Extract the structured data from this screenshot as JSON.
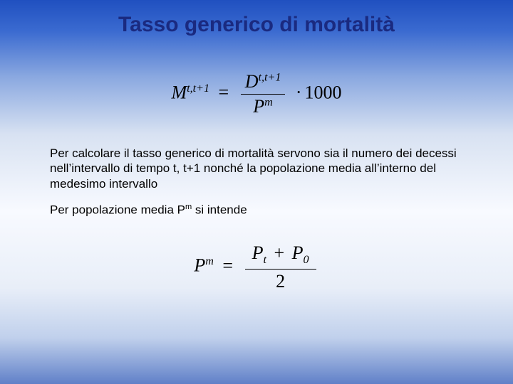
{
  "title": "Tasso generico di mortalità",
  "formula1": {
    "left_var": "M",
    "left_sup": "t,t+1",
    "eq": "=",
    "num_var": "D",
    "num_sup": "t,t+1",
    "den_var": "P",
    "den_sup": "m",
    "dot": "·",
    "factor": "1000"
  },
  "paragraph1": "Per calcolare il tasso generico di mortalità servono sia il numero dei decessi nell’intervallo di tempo t, t+1 nonché la popolazione media all’interno del medesimo intervallo",
  "paragraph2_a": "Per popolazione media P",
  "paragraph2_sup": "m",
  "paragraph2_b": " si intende",
  "formula2": {
    "left_var": "P",
    "left_sup": "m",
    "eq": "=",
    "num_a_var": "P",
    "num_a_sub": "t",
    "plus": "+",
    "num_b_var": "P",
    "num_b_sub": "0",
    "den": "2"
  },
  "colors": {
    "title_color": "#1a2a80",
    "text_color": "#000000"
  }
}
